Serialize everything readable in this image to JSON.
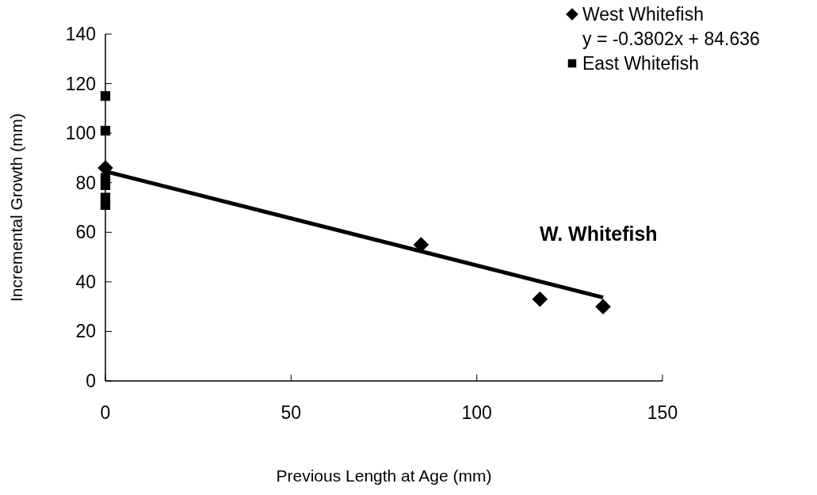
{
  "chart_data": {
    "type": "scatter",
    "xlabel": "Previous Length at Age (mm)",
    "ylabel": "Incremental Growth (mm)",
    "xlim": [
      0,
      150
    ],
    "xticks": [
      0,
      50,
      100,
      150
    ],
    "ylim": [
      0,
      140
    ],
    "yticks": [
      0,
      20,
      40,
      60,
      80,
      100,
      120,
      140
    ],
    "grid": false,
    "legend": "top right",
    "series": [
      {
        "name": "West Whitefish",
        "color": "#000000",
        "marker": "diamond",
        "x": [
          0,
          85,
          117,
          134
        ],
        "values": [
          86,
          55,
          33,
          30
        ]
      },
      {
        "type": "line",
        "color": "#000000",
        "marker": "none",
        "x": [
          0,
          134
        ],
        "values": [
          84.6,
          33.7
        ]
      },
      {
        "name": "East Whitefish",
        "color": "#000000",
        "marker": "square",
        "x": [
          0,
          0,
          0,
          0,
          0,
          0
        ],
        "values": [
          115,
          101,
          82,
          79,
          74,
          71
        ]
      }
    ],
    "annotations": [
      "y = -0.3802x + 84.636",
      "W. Whitefish"
    ]
  }
}
